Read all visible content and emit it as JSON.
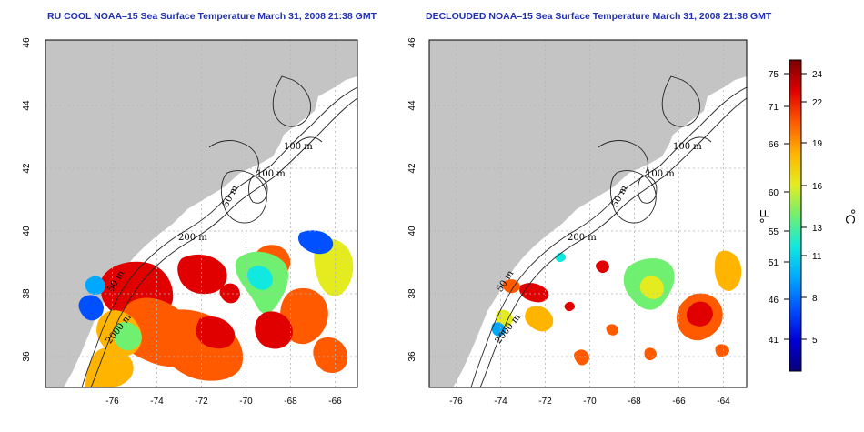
{
  "maps": [
    {
      "title": "RU COOL NOAA–15 Sea Surface Temperature March 31, 2008 21:38 GMT",
      "variant": "raw"
    },
    {
      "title": "DECLOUDED NOAA–15 Sea Surface Temperature March 31, 2008 21:38 GMT",
      "variant": "declouded"
    }
  ],
  "axes": {
    "lat_ticks": [
      46,
      44,
      42,
      40,
      38,
      36
    ],
    "lon_ticks": [
      -76,
      -74,
      -72,
      -70,
      -68,
      -66,
      -64
    ],
    "lat_range": [
      35,
      46
    ],
    "lon_range": [
      -77,
      -63
    ]
  },
  "contour_labels": [
    "100 m",
    "100 m",
    "50 m",
    "200 m",
    "50 m",
    "2000 m"
  ],
  "colorbar": {
    "fahrenheit_label": "°F",
    "celsius_label": "°C",
    "fahrenheit_ticks": [
      "75",
      "71",
      "66",
      "60",
      "55",
      "51",
      "46",
      "41"
    ],
    "celsius_ticks": [
      "24",
      "22",
      "19",
      "16",
      "13",
      "11",
      "8",
      "5"
    ],
    "celsius_range": [
      2,
      25
    ]
  },
  "colors": {
    "land": "#c4c4c4",
    "grid": "#b5b5b5",
    "title": "#1f2fb0",
    "scale": [
      "#08007a",
      "#0000d8",
      "#0050ff",
      "#00a8ff",
      "#10e8e0",
      "#70f070",
      "#e4ec20",
      "#ffb400",
      "#ff5a00",
      "#e00000",
      "#7a0000"
    ]
  }
}
